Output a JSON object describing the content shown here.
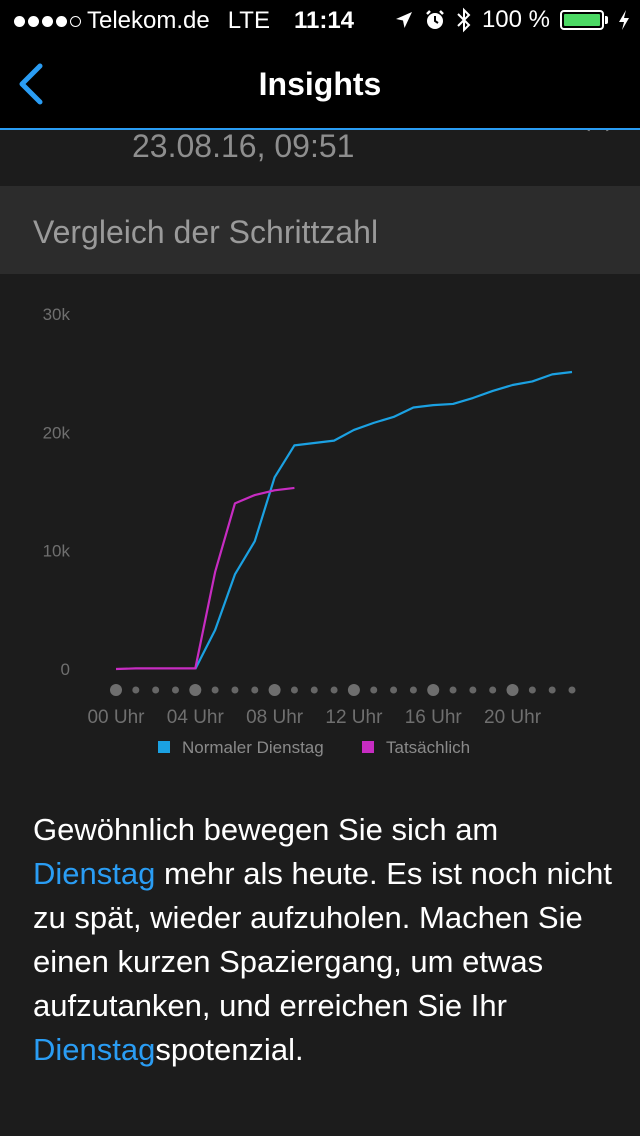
{
  "status_bar": {
    "carrier": "Telekom.de",
    "network": "LTE",
    "time": "11:14",
    "battery": "100 %",
    "signal_bars": 4,
    "icons": [
      "location-arrow-icon",
      "alarm-icon",
      "bluetooth-icon",
      "battery-icon",
      "charging-icon"
    ]
  },
  "nav": {
    "title": "Insights",
    "back_icon": "chevron-left-icon"
  },
  "record": {
    "date": "23.08.16, 09:51"
  },
  "section": {
    "title": "Vergleich der Schrittzahl"
  },
  "colors": {
    "accent": "#2a9df4",
    "normal_series": "#1ba1e2",
    "actual_series": "#c72cc2"
  },
  "chart_data": {
    "type": "line",
    "y_ticks": [
      "0",
      "10k",
      "20k",
      "30k"
    ],
    "ylim": [
      0,
      30000
    ],
    "xlim": [
      0,
      23
    ],
    "x_tick_labels": [
      "00 Uhr",
      "04 Uhr",
      "08 Uhr",
      "12 Uhr",
      "16 Uhr",
      "20 Uhr"
    ],
    "x_tick_hours": [
      0,
      4,
      8,
      12,
      16,
      20
    ],
    "legend": [
      "Normaler Dienstag",
      "Tatsächlich"
    ],
    "series": [
      {
        "name": "Normaler Dienstag",
        "x": [
          4,
          5,
          6,
          7,
          8,
          9,
          10,
          11,
          12,
          13,
          14,
          15,
          16,
          17,
          18,
          19,
          20,
          21,
          22,
          23
        ],
        "values": [
          0,
          3300,
          8000,
          10800,
          16200,
          18900,
          19100,
          19300,
          20200,
          20800,
          21300,
          22100,
          22300,
          22400,
          22900,
          23500,
          24000,
          24300,
          24900,
          25100
        ]
      },
      {
        "name": "Tatsächlich",
        "x": [
          0,
          1,
          2,
          3,
          4,
          5,
          6,
          7,
          8,
          9
        ],
        "values": [
          0,
          50,
          50,
          50,
          50,
          8200,
          14000,
          14700,
          15100,
          15300
        ]
      }
    ]
  },
  "message": {
    "p1": "Gewöhnlich bewegen Sie sich am ",
    "link1": "Dienstag",
    "p2": " mehr als heute. Es ist noch nicht zu spät, wieder aufzuholen. Machen Sie einen kurzen Spaziergang, um etwas aufzutanken, und erreichen Sie Ihr ",
    "link2": "Dienstag",
    "p3": "spotenzial."
  }
}
